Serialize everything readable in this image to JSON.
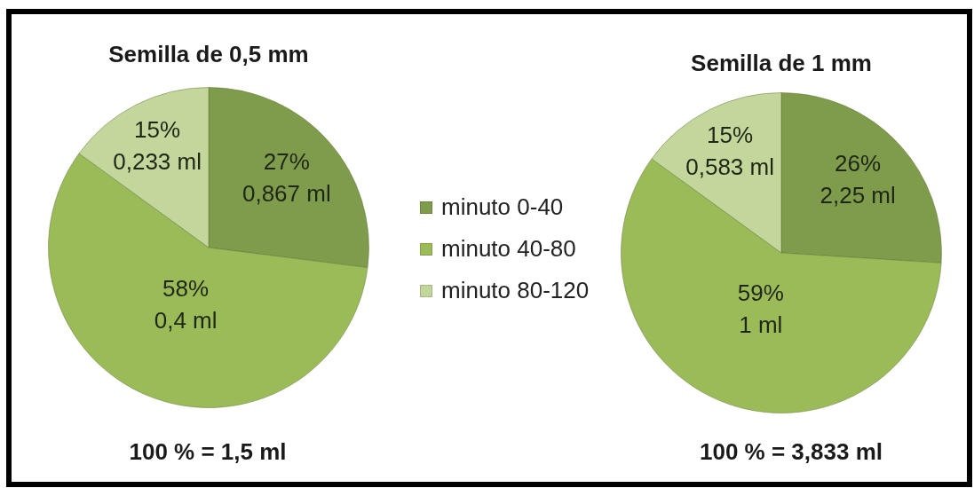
{
  "chart_data": [
    {
      "type": "pie",
      "title": "Semilla de 0,5 mm",
      "categories": [
        "minuto 0-40",
        "minuto 40-80",
        "minuto 80-120"
      ],
      "values": [
        27,
        58,
        15
      ],
      "colors": [
        "#7f9c4c",
        "#9bbb59",
        "#c3d69b"
      ],
      "value_labels": [
        "27%\n0,867 ml",
        "58%\n0,4 ml",
        "15%\n0,233 ml"
      ],
      "annotations": [
        "100 % = 1,5 ml"
      ],
      "legend": "right"
    },
    {
      "type": "pie",
      "title": "Semilla de 1 mm",
      "categories": [
        null,
        null,
        null
      ],
      "values": [
        26,
        59,
        15
      ],
      "colors": [
        "#7f9c4c",
        "#9bbb59",
        "#c3d69b"
      ],
      "value_labels": [
        "26%\n2,25 ml",
        "59%\n1 ml",
        "15%\n0,583 ml"
      ],
      "annotations": [
        "100 % = 3,833 ml"
      ]
    }
  ]
}
